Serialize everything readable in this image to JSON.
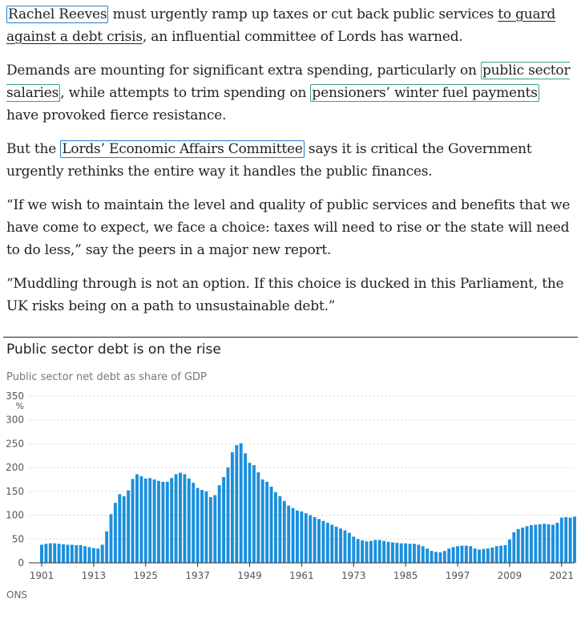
{
  "article": {
    "p1": {
      "link1": "Rachel Reeves",
      "text1": " must urgently ramp up taxes or cut back public services ",
      "link2": "to guard against a debt crisis",
      "text2": ", an influential committee of Lords has warned."
    },
    "p2": {
      "text1": "Demands are mounting for significant extra spending, particularly on ",
      "link1": "public sector salaries",
      "text2": ", while attempts to trim spending on ",
      "link2": "pensioners’ winter fuel payments",
      "text3": " have provoked fierce resistance."
    },
    "p3": {
      "text1": "But the ",
      "link1": "Lords’ Economic Affairs Committee",
      "text2": " says it is critical the Government urgently rethinks the entire way it handles the public finances."
    },
    "p4": "“If we wish to maintain the level and quality of public services and benefits that we have come to expect, we face a choice: taxes will need to rise or the state will need to do less,” say the peers in a major new report.",
    "p5": "“Muddling through is not an option. If this choice is ducked in this Parliament, the UK risks being on a path to unsustainable debt.”"
  },
  "chart_data": {
    "type": "bar",
    "title": "Public sector debt is on the rise",
    "subtitle": "Public sector net debt as share of GDP",
    "ylabel": "",
    "xlabel": "",
    "y_unit": "%",
    "source": "ONS",
    "ylim": [
      0,
      350
    ],
    "y_ticks": [
      0,
      50,
      100,
      150,
      200,
      250,
      300,
      350
    ],
    "x_ticks": [
      "1901",
      "1913",
      "1925",
      "1937",
      "1949",
      "1961",
      "1973",
      "1985",
      "1997",
      "2009",
      "2021"
    ],
    "bar_color": "#1a8fdd",
    "years": [
      1901,
      1902,
      1903,
      1904,
      1905,
      1906,
      1907,
      1908,
      1909,
      1910,
      1911,
      1912,
      1913,
      1914,
      1915,
      1916,
      1917,
      1918,
      1919,
      1920,
      1921,
      1922,
      1923,
      1924,
      1925,
      1926,
      1927,
      1928,
      1929,
      1930,
      1931,
      1932,
      1933,
      1934,
      1935,
      1936,
      1937,
      1938,
      1939,
      1940,
      1941,
      1942,
      1943,
      1944,
      1945,
      1946,
      1947,
      1948,
      1949,
      1950,
      1951,
      1952,
      1953,
      1954,
      1955,
      1956,
      1957,
      1958,
      1959,
      1960,
      1961,
      1962,
      1963,
      1964,
      1965,
      1966,
      1967,
      1968,
      1969,
      1970,
      1971,
      1972,
      1973,
      1974,
      1975,
      1976,
      1977,
      1978,
      1979,
      1980,
      1981,
      1982,
      1983,
      1984,
      1985,
      1986,
      1987,
      1988,
      1989,
      1990,
      1991,
      1992,
      1993,
      1994,
      1995,
      1996,
      1997,
      1998,
      1999,
      2000,
      2001,
      2002,
      2003,
      2004,
      2005,
      2006,
      2007,
      2008,
      2009,
      2010,
      2011,
      2012,
      2013,
      2014,
      2015,
      2016,
      2017,
      2018,
      2019,
      2020,
      2021,
      2022,
      2023,
      2024
    ],
    "values": [
      38,
      40,
      41,
      41,
      40,
      39,
      38,
      38,
      37,
      37,
      35,
      33,
      31,
      30,
      38,
      66,
      102,
      126,
      144,
      140,
      152,
      176,
      186,
      182,
      177,
      178,
      175,
      172,
      170,
      170,
      178,
      186,
      189,
      186,
      177,
      168,
      157,
      153,
      150,
      138,
      142,
      163,
      180,
      200,
      232,
      247,
      251,
      230,
      210,
      205,
      190,
      175,
      170,
      160,
      148,
      140,
      130,
      120,
      115,
      110,
      108,
      104,
      100,
      96,
      92,
      88,
      84,
      80,
      76,
      72,
      68,
      63,
      55,
      50,
      47,
      45,
      46,
      48,
      48,
      46,
      44,
      43,
      42,
      41,
      41,
      40,
      40,
      38,
      35,
      30,
      25,
      23,
      22,
      25,
      30,
      33,
      35,
      36,
      36,
      35,
      30,
      28,
      29,
      30,
      32,
      35,
      36,
      37,
      49,
      64,
      71,
      74,
      77,
      79,
      80,
      81,
      82,
      81,
      80,
      84,
      95,
      96,
      95,
      97
    ]
  }
}
